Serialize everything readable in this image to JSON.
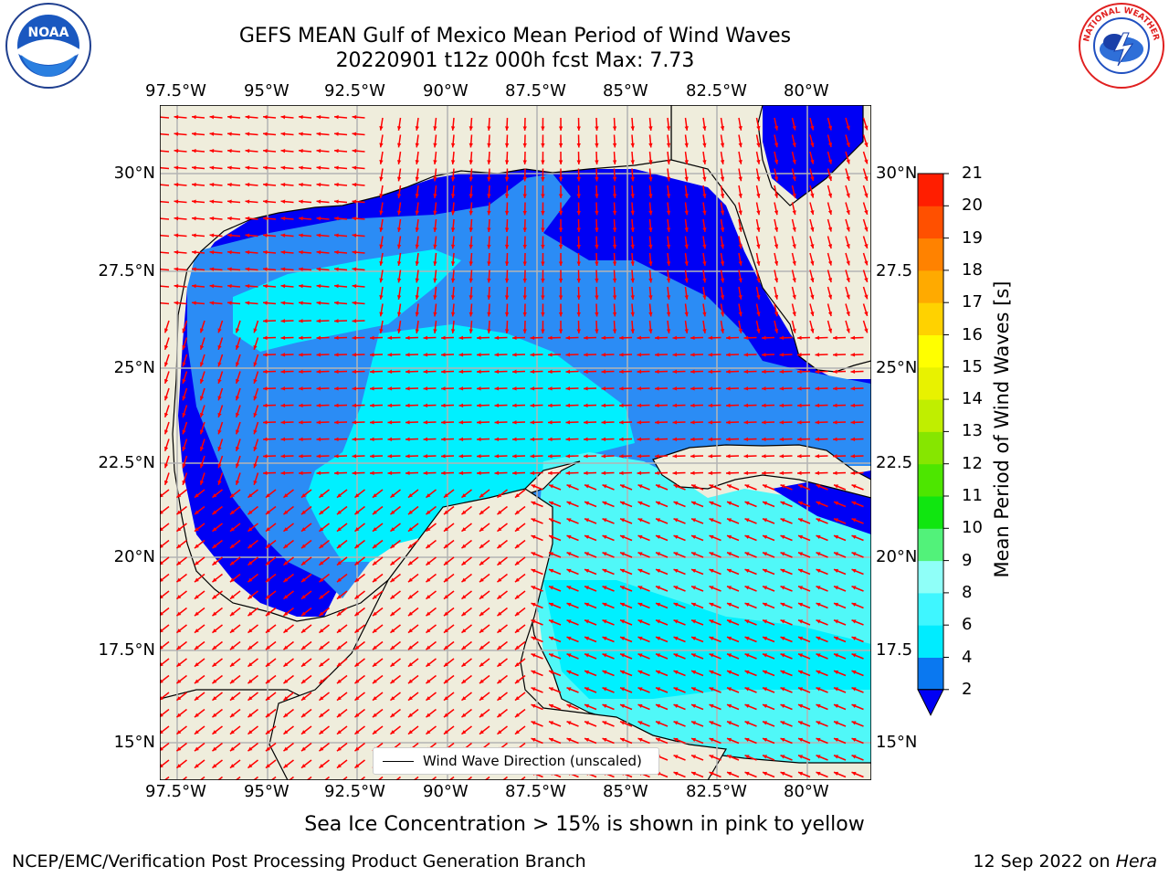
{
  "title": {
    "line1": "GEFS MEAN Gulf of Mexico Mean Period of Wind Waves",
    "line2": "20220901 t12z 000h fcst   Max: 7.73"
  },
  "map": {
    "lon_labels": [
      "97.5°W",
      "95°W",
      "92.5°W",
      "90°W",
      "87.5°W",
      "85°W",
      "82.5°W",
      "80°W"
    ],
    "lat_labels_left": [
      "30°N",
      "27.5°N",
      "25°N",
      "22.5°N",
      "20°N",
      "17.5°N",
      "15°N"
    ],
    "lat_labels_right": [
      "30°N",
      "27.5",
      "25°N",
      "22.5",
      "20°N",
      "17.5",
      "15°N"
    ],
    "colors": {
      "land": "#efeddc",
      "deep": "#0000f5",
      "mid": "#2b8cf5",
      "light": "#00f0ff",
      "pale": "#50f8f8",
      "arrow": "#ff0000"
    }
  },
  "legend": {
    "label": "Wind Wave Direction (unscaled)"
  },
  "colorbar": {
    "title": "Mean Period of Wind Waves [s]",
    "labels": [
      "2",
      "4",
      "6",
      "8",
      "9",
      "10",
      "11",
      "12",
      "13",
      "14",
      "15",
      "16",
      "17",
      "18",
      "19",
      "20",
      "21"
    ],
    "colors": [
      "#0a78f0",
      "#00ecff",
      "#3ff6ff",
      "#8ffff8",
      "#52f27a",
      "#10e610",
      "#4de600",
      "#86e600",
      "#c0ee00",
      "#e8f200",
      "#ffff00",
      "#ffd200",
      "#ffaa00",
      "#ff8200",
      "#ff5000",
      "#ff1e00",
      "#ff0000"
    ],
    "under_color": "#0000f5"
  },
  "note": "Sea Ice Concentration > 15% is shown in pink to yellow",
  "footer": {
    "credit": "NCEP/EMC/Verification Post Processing Product Generation Branch",
    "date": "12 Sep 2022 on ",
    "machine": "Hera"
  },
  "logos": {
    "left": "NOAA",
    "right": "NATIONAL WEATHER SERVICE"
  }
}
